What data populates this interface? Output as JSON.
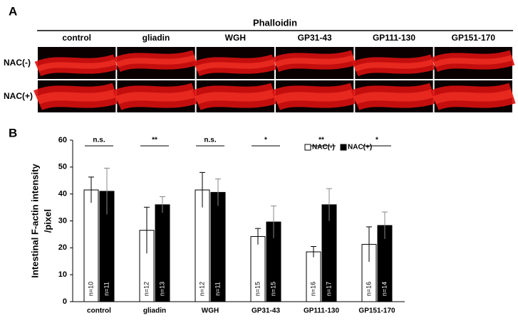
{
  "panel_a": {
    "label": "A",
    "header": "Phalloidin",
    "columns": [
      "control",
      "gliadin",
      "WGH",
      "GP31-43",
      "GP111-130",
      "GP151-170"
    ],
    "rows": [
      "NAC(-)",
      "NAC(+)"
    ]
  },
  "chart_data": {
    "type": "bar",
    "panel_label": "B",
    "y_label": [
      "Intestinal F-actin intensity",
      "/pixel"
    ],
    "categories": [
      "control",
      "gliadin",
      "WGH",
      "GP31-43",
      "GP111-130",
      "GP151-170"
    ],
    "series": [
      {
        "name": "NAC(-)",
        "color": "#ffffff",
        "values": [
          41.5,
          26.5,
          41.5,
          24.2,
          18.5,
          21.3
        ],
        "errors": [
          4.8,
          8.6,
          6.5,
          3,
          2,
          6.5
        ],
        "n_labels": [
          "n=10",
          "n=12",
          "n=12",
          "n=15",
          "n=16",
          "n=16"
        ]
      },
      {
        "name": "NAC(+)",
        "color": "#000000",
        "values": [
          41,
          36,
          40.6,
          29.6,
          36,
          28.3
        ],
        "errors": [
          8.6,
          3,
          5,
          6,
          6,
          5
        ],
        "n_labels": [
          "n=11",
          "n=13",
          "n=11",
          "n=15",
          "n=17",
          "n=14"
        ]
      }
    ],
    "significance": [
      "n.s.",
      "**",
      "n.s.",
      "*",
      "**",
      "*"
    ],
    "ylim": [
      0,
      60
    ],
    "yticks": [
      0,
      10,
      20,
      30,
      40,
      50,
      60
    ],
    "grid": false,
    "legend": "upper right"
  }
}
